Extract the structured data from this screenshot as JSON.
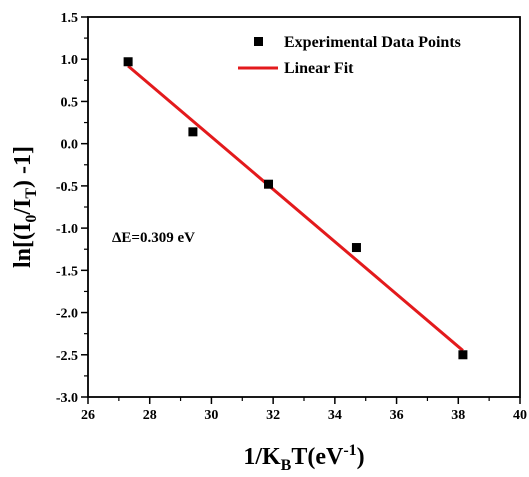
{
  "chart_data": {
    "type": "scatter",
    "xlabel": "1/K_BT(eV^-1)",
    "ylabel": "ln[(I_0/I_T) -1]",
    "xlim": [
      26,
      40
    ],
    "ylim": [
      -3.0,
      1.5
    ],
    "x_ticks": [
      26,
      28,
      30,
      32,
      34,
      36,
      38,
      40
    ],
    "y_ticks": [
      "1.5",
      "1.0",
      "0.5",
      "0.0",
      "-0.5",
      "-1.0",
      "-1.5",
      "-2.0",
      "-2.5",
      "-3.0"
    ],
    "series": [
      {
        "name": "Experimental Data Points",
        "kind": "scatter",
        "marker": "square",
        "color": "#000000",
        "x": [
          27.3,
          29.4,
          31.85,
          34.7,
          38.15
        ],
        "y": [
          0.97,
          0.14,
          -0.48,
          -1.23,
          -2.5
        ]
      },
      {
        "name": "Linear Fit",
        "kind": "line",
        "color": "#e31a1c",
        "x": [
          27.3,
          38.15
        ],
        "y": [
          0.92,
          -2.45
        ]
      }
    ],
    "annotation": "ΔE=0.309 eV",
    "legend": "top-right",
    "grid": false
  }
}
